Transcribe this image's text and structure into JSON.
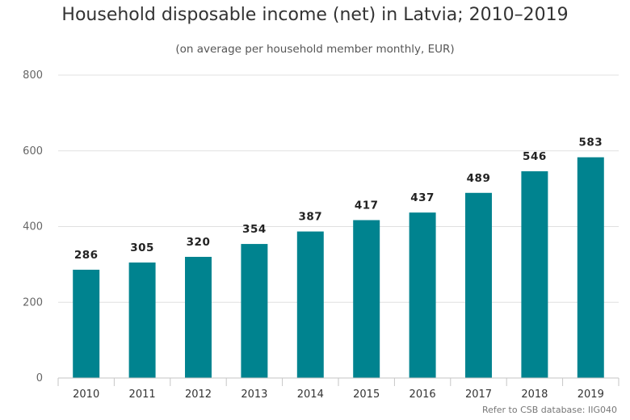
{
  "chart_data": {
    "type": "bar",
    "title": "Household disposable income (net) in Latvia; 2010–2019",
    "subtitle": "(on average per household member monthly, EUR)",
    "categories": [
      "2010",
      "2011",
      "2012",
      "2013",
      "2014",
      "2015",
      "2016",
      "2017",
      "2018",
      "2019"
    ],
    "values": [
      286,
      305,
      320,
      354,
      387,
      417,
      437,
      489,
      546,
      583
    ],
    "xlabel": "",
    "ylabel": "",
    "ylim": [
      0,
      800
    ],
    "yticks": [
      "0",
      "200",
      "400",
      "600",
      "800"
    ],
    "grid": true,
    "legend": "none",
    "bar_color": "#00838f",
    "credit": "Refer to CSB database: IIG040"
  }
}
